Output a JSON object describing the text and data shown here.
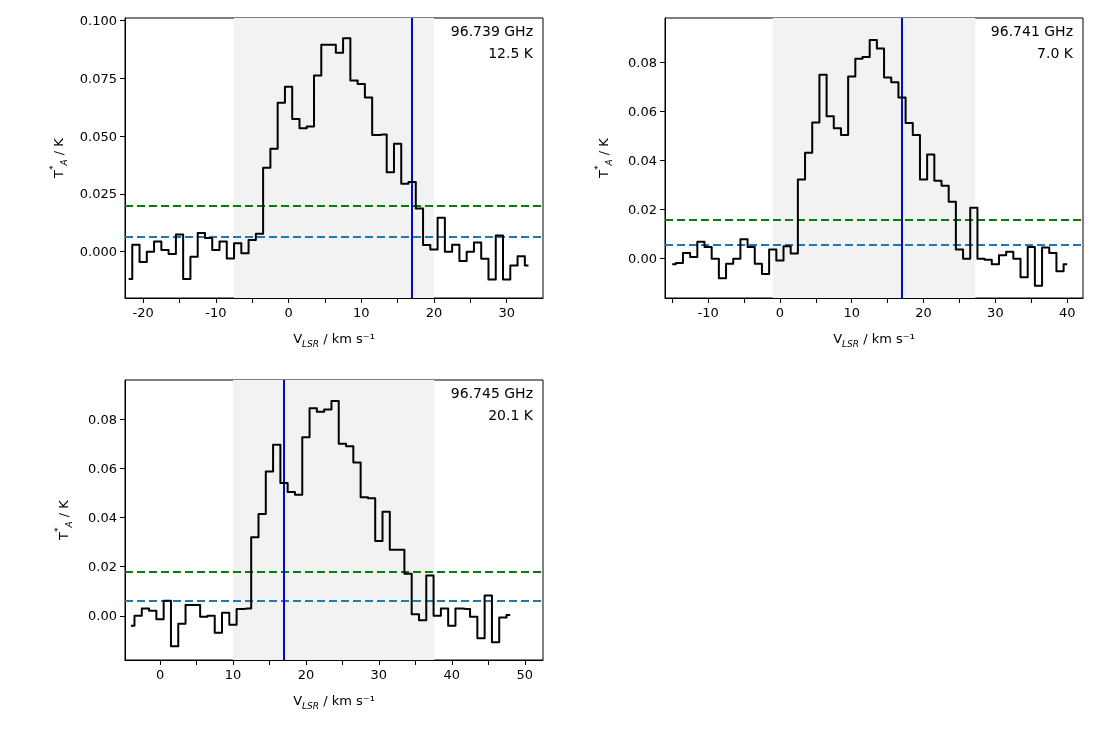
{
  "chart_data": [
    {
      "type": "step",
      "xlabel": "V$_{LSR}$ / km s⁻¹",
      "ylabel": "T$^{*}$$_{A}$ / K",
      "annotations": [
        "96.739 GHz",
        "12.5 K"
      ],
      "x": [
        -22,
        -21,
        -20,
        -19,
        -18,
        -17,
        -16,
        -15,
        -14,
        -13,
        -12,
        -11,
        -10,
        -9,
        -8,
        -7,
        -6,
        -5,
        -4,
        -3,
        -2,
        -1,
        0,
        1,
        2,
        3,
        4,
        5,
        6,
        7,
        8,
        9,
        10,
        11,
        12,
        13,
        14,
        15,
        16,
        17,
        18,
        19,
        20,
        21,
        22,
        23,
        24,
        25,
        26,
        27,
        28,
        29,
        30,
        31,
        32,
        33
      ],
      "series": [
        {
          "color": "#000000",
          "values": [
            -0.0118,
            0.003,
            -0.0044,
            0.0,
            0.0044,
            0.0007,
            -0.001,
            0.0074,
            -0.0118,
            -0.0022,
            0.0081,
            0.0059,
            0.0007,
            0.0044,
            -0.0029,
            0.0037,
            -0.0007,
            0.0051,
            0.0078,
            0.0363,
            0.0445,
            0.0644,
            0.0713,
            0.0573,
            0.0534,
            0.0541,
            0.0761,
            0.0894,
            0.0894,
            0.086,
            0.0922,
            0.074,
            0.0725,
            0.0666,
            0.0504,
            0.0507,
            0.0343,
            0.0467,
            0.0294,
            0.0301,
            0.0187,
            0.0029,
            0.001,
            0.0147,
            0.0,
            0.003,
            -0.004,
            0.0,
            0.004,
            -0.003,
            -0.012,
            0.007,
            -0.012,
            -0.006,
            -0.002,
            -0.006
          ]
        }
      ],
      "xlim": [
        -22.5,
        35
      ],
      "xticks": [
        -20,
        {
          "value": -15,
          "label": null
        },
        -10,
        {
          "value": -5,
          "label": null
        },
        0,
        {
          "value": 5,
          "label": null
        },
        10,
        {
          "value": 15,
          "label": null
        },
        20,
        {
          "value": 25,
          "label": null
        },
        30
      ],
      "ylim": [
        -0.02,
        0.101
      ],
      "yticks": [
        {
          "value": 0,
          "label": "0.000"
        },
        {
          "value": 0.025,
          "label": "0.025"
        },
        {
          "value": 0.05,
          "label": "0.050"
        },
        {
          "value": 0.075,
          "label": "0.075"
        },
        {
          "value": 0.1,
          "label": "0.100"
        }
      ],
      "ref_lines": [
        {
          "axis": "y",
          "value": 0.02,
          "color": "#008000",
          "line_style": "dashed"
        },
        {
          "axis": "y",
          "value": 0.0065,
          "color": "#1f77b4",
          "line_style": "dashed"
        },
        {
          "axis": "x",
          "value": 17,
          "color": "#0000ff",
          "line_style": "solid"
        }
      ],
      "bands": [
        {
          "axis": "x",
          "from": -7.5,
          "to": 20,
          "color": "#f2f2f2"
        }
      ]
    },
    {
      "type": "step",
      "xlabel": "V$_{LSR}$ / km s⁻¹",
      "ylabel": "T$^{*}$$_{A}$ / K",
      "annotations": [
        "96.741 GHz",
        "7.0 K"
      ],
      "x": [
        -15,
        -14,
        -13,
        -12,
        -11,
        -10,
        -9,
        -8,
        -7,
        -6,
        -5,
        -4,
        -3,
        -2,
        -1,
        0,
        1,
        2,
        3,
        4,
        5,
        6,
        7,
        8,
        9,
        10,
        11,
        12,
        13,
        14,
        15,
        16,
        17,
        18,
        19,
        20,
        21,
        22,
        23,
        24,
        25,
        26,
        27,
        28,
        29,
        30,
        31,
        32,
        33,
        34,
        35,
        36,
        37,
        38,
        39,
        40
      ],
      "series": [
        {
          "color": "#000000",
          "values": [
            -0.0023,
            -0.0018,
            0.0023,
            0.0007,
            0.0069,
            0.0048,
            0.0,
            -0.008,
            -0.0021,
            0.0,
            0.0079,
            0.0048,
            -0.0021,
            -0.0062,
            0.0037,
            -0.0007,
            0.0051,
            0.0021,
            0.0322,
            0.0431,
            0.0555,
            0.0749,
            0.058,
            0.0531,
            0.0504,
            0.0742,
            0.0814,
            0.0821,
            0.089,
            0.0856,
            0.0738,
            0.0718,
            0.0656,
            0.0552,
            0.0504,
            0.0322,
            0.0424,
            0.0317,
            0.0297,
            0.0232,
            0.0037,
            0.0,
            0.0207,
            0.0,
            -0.0004,
            -0.0023,
            0.0014,
            0.0028,
            0.0,
            -0.0076,
            0.0048,
            -0.011,
            0.0046,
            0.0023,
            -0.0051,
            -0.0023
          ]
        }
      ],
      "xlim": [
        -16,
        42.2
      ],
      "xticks": [
        {
          "value": -15,
          "label": null
        },
        -10,
        {
          "value": -5,
          "label": null
        },
        0,
        {
          "value": 5,
          "label": null
        },
        10,
        {
          "value": 15,
          "label": null
        },
        20,
        {
          "value": 25,
          "label": null
        },
        30,
        {
          "value": 35,
          "label": null
        },
        40
      ],
      "ylim": [
        -0.016,
        0.098
      ],
      "yticks": [
        {
          "value": 0,
          "label": "0.00"
        },
        {
          "value": 0.02,
          "label": "0.02"
        },
        {
          "value": 0.04,
          "label": "0.04"
        },
        {
          "value": 0.06,
          "label": "0.06"
        },
        {
          "value": 0.08,
          "label": "0.08"
        }
      ],
      "ref_lines": [
        {
          "axis": "y",
          "value": 0.016,
          "color": "#008000",
          "line_style": "dashed"
        },
        {
          "axis": "y",
          "value": 0.0055,
          "color": "#1f77b4",
          "line_style": "dashed"
        },
        {
          "axis": "x",
          "value": 17,
          "color": "#0000ff",
          "line_style": "solid"
        }
      ],
      "bands": [
        {
          "axis": "x",
          "from": -1,
          "to": 27.2,
          "color": "#f2f2f2"
        }
      ]
    },
    {
      "type": "step",
      "xlabel": "V$_{LSR}$ / km s⁻¹",
      "ylabel": "T$^{*}$$_{A}$ / K",
      "annotations": [
        "96.745 GHz",
        "20.1 K"
      ],
      "x": [
        -4,
        -3,
        -2,
        -1,
        0,
        1,
        2,
        3,
        4,
        5,
        6,
        7,
        8,
        9,
        10,
        11,
        12,
        13,
        14,
        15,
        16,
        17,
        18,
        19,
        20,
        21,
        22,
        23,
        24,
        25,
        26,
        27,
        28,
        29,
        30,
        31,
        32,
        33,
        34,
        35,
        36,
        37,
        38,
        39,
        40,
        41,
        42,
        43,
        44,
        45,
        46,
        47,
        48
      ],
      "series": [
        {
          "color": "#000000",
          "values": [
            -0.0041,
            0.0,
            0.003,
            0.0021,
            -0.0014,
            0.0061,
            -0.0124,
            -0.0032,
            0.0044,
            0.0044,
            -0.0004,
            0.0,
            -0.0069,
            0.0012,
            -0.0036,
            0.0028,
            0.003,
            0.032,
            0.0414,
            0.0587,
            0.0696,
            0.0541,
            0.0504,
            0.0493,
            0.0727,
            0.0845,
            0.0831,
            0.084,
            0.0875,
            0.07,
            0.069,
            0.0624,
            0.0483,
            0.0479,
            0.0304,
            0.0424,
            0.0269,
            0.0269,
            0.0171,
            0.0006,
            -0.0018,
            0.0164,
            0.0,
            0.003,
            -0.0041,
            0.003,
            0.0028,
            -0.0004,
            -0.0091,
            0.0083,
            -0.0108,
            -0.0007,
            0.0003
          ]
        }
      ],
      "xlim": [
        -4.8,
        52.5
      ],
      "xticks": [
        0,
        {
          "value": 5,
          "label": null
        },
        10,
        {
          "value": 15,
          "label": null
        },
        20,
        {
          "value": 25,
          "label": null
        },
        30,
        {
          "value": 35,
          "label": null
        },
        40,
        {
          "value": 45,
          "label": null
        },
        50
      ],
      "ylim": [
        -0.018,
        0.096
      ],
      "yticks": [
        {
          "value": 0,
          "label": "0.00"
        },
        {
          "value": 0.02,
          "label": "0.02"
        },
        {
          "value": 0.04,
          "label": "0.04"
        },
        {
          "value": 0.06,
          "label": "0.06"
        },
        {
          "value": 0.08,
          "label": "0.08"
        }
      ],
      "ref_lines": [
        {
          "axis": "y",
          "value": 0.018,
          "color": "#008000",
          "line_style": "dashed"
        },
        {
          "axis": "y",
          "value": 0.006,
          "color": "#1f77b4",
          "line_style": "dashed"
        },
        {
          "axis": "x",
          "value": 17,
          "color": "#0000ff",
          "line_style": "solid"
        }
      ],
      "bands": [
        {
          "axis": "x",
          "from": 10,
          "to": 37.6,
          "color": "#f2f2f2"
        }
      ]
    }
  ]
}
